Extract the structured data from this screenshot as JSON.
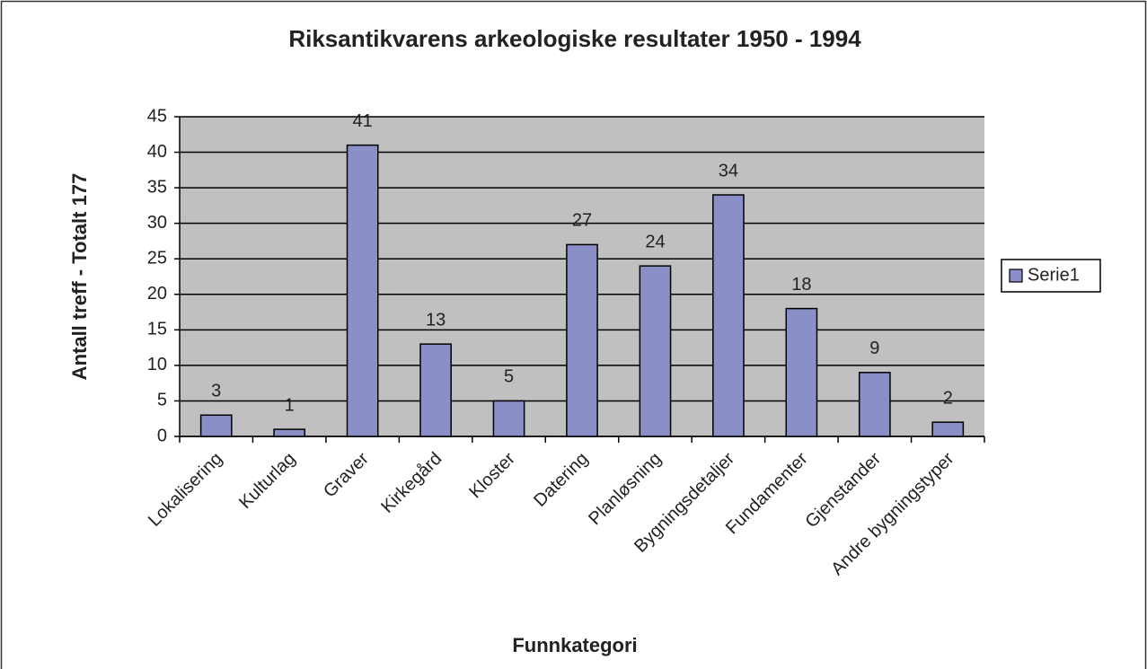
{
  "chart_data": {
    "type": "bar",
    "title": "Riksantikvarens arkeologiske resultater 1950 - 1994",
    "x_label": "Funnkategori",
    "y_label": "Antall treff - Totalt 177",
    "categories": [
      "Lokalisering",
      "Kulturlag",
      "Graver",
      "Kirkegård",
      "Kloster",
      "Datering",
      "Planløsning",
      "Bygningsdetaljer",
      "Fundamenter",
      "Gjenstander",
      "Andre bygningstyper"
    ],
    "series": [
      {
        "name": "Serie1",
        "color": "#8b8fc8",
        "values": [
          3,
          1,
          41,
          13,
          5,
          27,
          24,
          34,
          18,
          9,
          2
        ]
      }
    ],
    "ylim": [
      0,
      45
    ],
    "yticks": [
      0,
      5,
      10,
      15,
      20,
      25,
      30,
      35,
      40,
      45
    ],
    "grid": true,
    "legend": "right",
    "plot_background": "#c0c0c0"
  }
}
